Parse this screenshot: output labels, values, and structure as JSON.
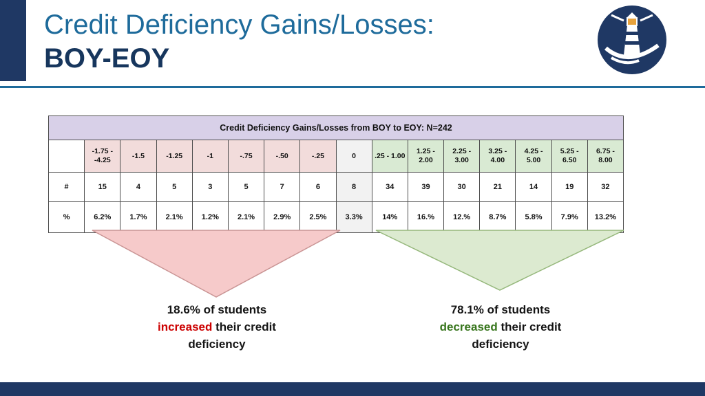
{
  "slide": {
    "title_line1": "Credit Deficiency Gains/Losses:",
    "title_line2": "BOY-EOY",
    "accent_color": "#1e6b9b",
    "navy_color": "#1f3864"
  },
  "table": {
    "title": "Credit Deficiency Gains/Losses from BOY to EOY: N=242",
    "row_labels": {
      "count": "#",
      "percent": "%"
    },
    "columns": [
      {
        "range": "-1.75 - -4.25",
        "group": "negative",
        "count": "15",
        "percent": "6.2%"
      },
      {
        "range": "-1.5",
        "group": "negative",
        "count": "4",
        "percent": "1.7%"
      },
      {
        "range": "-1.25",
        "group": "negative",
        "count": "5",
        "percent": "2.1%"
      },
      {
        "range": "-1",
        "group": "negative",
        "count": "3",
        "percent": "1.2%"
      },
      {
        "range": "-.75",
        "group": "negative",
        "count": "5",
        "percent": "2.1%"
      },
      {
        "range": "-.50",
        "group": "negative",
        "count": "7",
        "percent": "2.9%"
      },
      {
        "range": "-.25",
        "group": "negative",
        "count": "6",
        "percent": "2.5%"
      },
      {
        "range": "0",
        "group": "zero",
        "count": "8",
        "percent": "3.3%"
      },
      {
        "range": ".25 - 1.00",
        "group": "positive",
        "count": "34",
        "percent": "14%"
      },
      {
        "range": "1.25 - 2.00",
        "group": "positive",
        "count": "39",
        "percent": "16.%"
      },
      {
        "range": "2.25 - 3.00",
        "group": "positive",
        "count": "30",
        "percent": "12.%"
      },
      {
        "range": "3.25 - 4.00",
        "group": "positive",
        "count": "21",
        "percent": "8.7%"
      },
      {
        "range": "4.25 - 5.00",
        "group": "positive",
        "count": "14",
        "percent": "5.8%"
      },
      {
        "range": "5.25 - 6.50",
        "group": "positive",
        "count": "19",
        "percent": "7.9%"
      },
      {
        "range": "6.75 - 8.00",
        "group": "positive",
        "count": "32",
        "percent": "13.2%"
      }
    ],
    "colors": {
      "title_bg": "#d8d0e8",
      "negative_bg": "#f2dcdb",
      "zero_bg": "#f2f2f2",
      "positive_bg": "#d9ead3"
    }
  },
  "chart_data": {
    "type": "table",
    "title": "Credit Deficiency Gains/Losses from BOY to EOY: N=242",
    "categories": [
      "-1.75 - -4.25",
      "-1.5",
      "-1.25",
      "-1",
      "-.75",
      "-.50",
      "-.25",
      "0",
      ".25 - 1.00",
      "1.25 - 2.00",
      "2.25 - 3.00",
      "3.25 - 4.00",
      "4.25 - 5.00",
      "5.25 - 6.50",
      "6.75 - 8.00"
    ],
    "series": [
      {
        "name": "#",
        "values": [
          15,
          4,
          5,
          3,
          5,
          7,
          6,
          8,
          34,
          39,
          30,
          21,
          14,
          19,
          32
        ]
      },
      {
        "name": "%",
        "values": [
          "6.2%",
          "1.7%",
          "2.1%",
          "1.2%",
          "2.1%",
          "2.9%",
          "2.5%",
          "3.3%",
          "14%",
          "16.%",
          "12.%",
          "8.7%",
          "5.8%",
          "7.9%",
          "13.2%"
        ]
      }
    ]
  },
  "annotations": {
    "increased": {
      "line1": "18.6% of students",
      "highlight": "increased",
      "line2_suffix": " their credit",
      "line3": "deficiency",
      "highlight_color": "#cc0000",
      "funnel_fill": "#f6caca",
      "funnel_stroke": "#c99494"
    },
    "decreased": {
      "line1": "78.1% of students",
      "highlight": "decreased",
      "line2_suffix": " their credit",
      "line3": "deficiency",
      "highlight_color": "#38761d",
      "funnel_fill": "#dcead0",
      "funnel_stroke": "#96b87c"
    }
  }
}
